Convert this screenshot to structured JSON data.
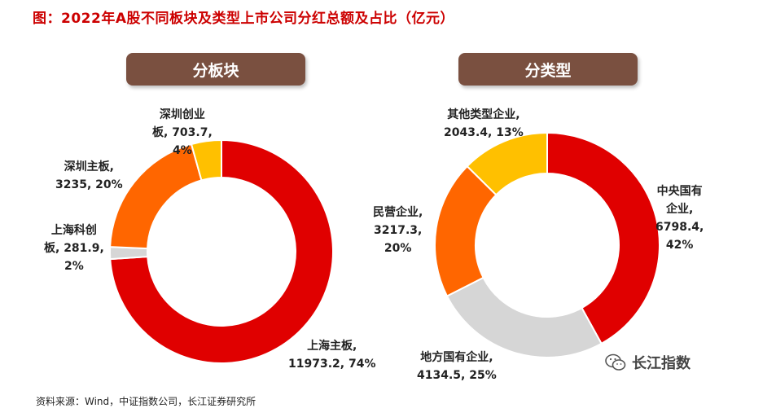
{
  "title": "图：2022年A股不同板块及类型上市公司分红总额及占比（亿元）",
  "left_header": "分板块",
  "right_header": "分类型",
  "source": "资料来源：Wind，中证指数公司，长江证券研究所",
  "watermark": "长江指数",
  "watermark_icon": "wechat-icon",
  "chart_data": [
    {
      "type": "pie",
      "title": "分板块",
      "donut": true,
      "slices": [
        {
          "name": "上海主板",
          "value": 11973.2,
          "pct": 74,
          "color": "#e00000",
          "label": "上海主板,\n11973.2, 74%"
        },
        {
          "name": "上海科创板",
          "value": 281.9,
          "pct": 2,
          "color": "#d6d6d6",
          "label": "上海科创\n板, 281.9,\n2%"
        },
        {
          "name": "深圳主板",
          "value": 3235,
          "pct": 20,
          "color": "#ff6600",
          "label": "深圳主板,\n3235, 20%"
        },
        {
          "name": "深圳创业板",
          "value": 703.7,
          "pct": 4,
          "color": "#ffc000",
          "label": "深圳创业\n板, 703.7,\n4%"
        }
      ]
    },
    {
      "type": "pie",
      "title": "分类型",
      "donut": true,
      "slices": [
        {
          "name": "中央国有企业",
          "value": 6798.4,
          "pct": 42,
          "color": "#e00000",
          "label": "中央国有\n企业,\n6798.4,\n42%"
        },
        {
          "name": "地方国有企业",
          "value": 4134.5,
          "pct": 25,
          "color": "#d6d6d6",
          "label": "地方国有企业,\n4134.5, 25%"
        },
        {
          "name": "民营企业",
          "value": 3217.3,
          "pct": 20,
          "color": "#ff6600",
          "label": "民营企业,\n3217.3,\n20%"
        },
        {
          "name": "其他类型企业",
          "value": 2043.4,
          "pct": 13,
          "color": "#ffc000",
          "label": "其他类型企业,\n2043.4, 13%"
        }
      ]
    }
  ]
}
